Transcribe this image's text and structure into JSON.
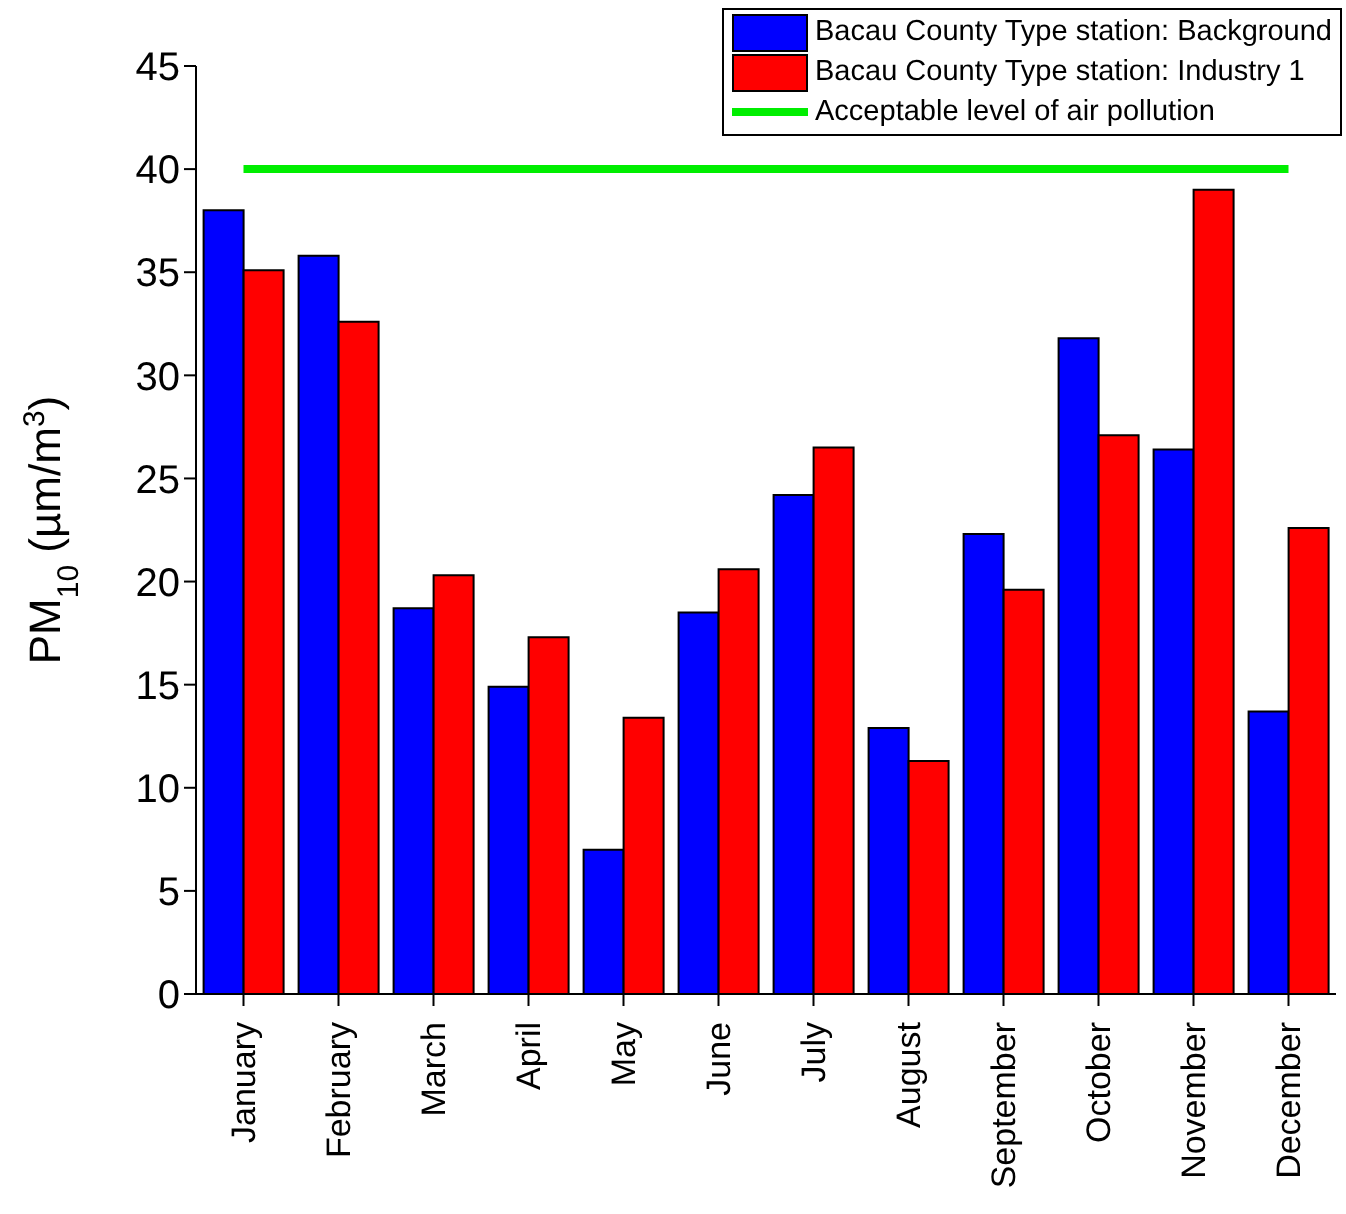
{
  "chart_data": {
    "type": "bar",
    "ylabel": "PM$_{10}$ (µm/m$^{3}$)",
    "categories": [
      "January",
      "February",
      "March",
      "April",
      "May",
      "June",
      "July",
      "August",
      "September",
      "October",
      "November",
      "December"
    ],
    "series": [
      {
        "name": "Bacau County Type station: Background",
        "color": "#0000ff",
        "values": [
          38,
          35.8,
          18.7,
          14.9,
          7,
          18.5,
          24.2,
          12.9,
          22.3,
          31.8,
          26.4,
          13.7
        ]
      },
      {
        "name": "Bacau County Type station: Industry 1",
        "color": "#ff0000",
        "values": [
          35.1,
          32.6,
          20.3,
          17.3,
          13.4,
          20.6,
          26.5,
          11.3,
          19.6,
          27.1,
          39,
          22.6
        ]
      },
      {
        "name": "Acceptable level of air pollution",
        "type": "line",
        "color": "#00ee00",
        "values": [
          40,
          40,
          40,
          40,
          40,
          40,
          40,
          40,
          40,
          40,
          40,
          40
        ]
      }
    ],
    "ylim": [
      0,
      45
    ],
    "yticks": [
      0,
      5,
      10,
      15,
      20,
      25,
      30,
      35,
      40,
      45
    ],
    "grid": false,
    "legend": "top right"
  }
}
